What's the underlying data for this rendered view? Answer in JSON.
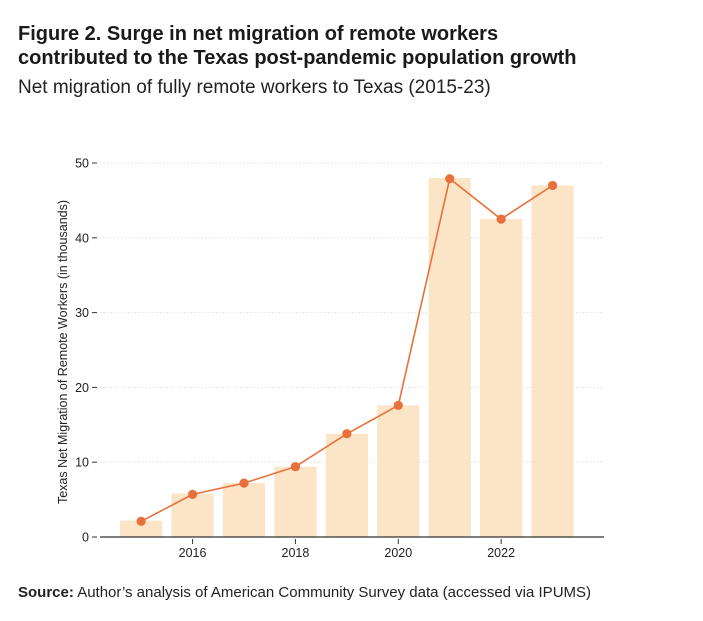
{
  "figure": {
    "title_line1": "Figure 2. Surge in net migration of remote workers",
    "title_line2": "contributed to the Texas post-pandemic population growth",
    "source_label": "Source:",
    "source_text": " Author’s analysis of American Community Survey data (accessed via IPUMS)"
  },
  "colors": {
    "bar": "#fbe5c6",
    "line": "#e8703a",
    "grid": "#d9d9d9",
    "axis": "#333333"
  },
  "chart_data": {
    "type": "bar",
    "title": "Net migration of fully remote workers to Texas (2015-23)",
    "xlabel": "",
    "ylabel": "Texas Net Migration of Remote Workers (in thousands)",
    "x": [
      2015,
      2016,
      2017,
      2018,
      2019,
      2020,
      2021,
      2022,
      2023
    ],
    "xticks": [
      2016,
      2018,
      2020,
      2022
    ],
    "yticks": [
      0,
      10,
      20,
      30,
      40,
      50
    ],
    "ylim": [
      0,
      50
    ],
    "xlim": [
      2014.2,
      2024.0
    ],
    "grid": true,
    "series": [
      {
        "name": "bars",
        "type": "bar",
        "values": [
          2.2,
          5.8,
          7.2,
          9.4,
          13.8,
          17.6,
          48.0,
          42.5,
          47.0
        ]
      },
      {
        "name": "line",
        "type": "line",
        "values": [
          2.1,
          5.7,
          7.2,
          9.4,
          13.8,
          17.6,
          47.9,
          42.5,
          47.0
        ]
      }
    ]
  }
}
